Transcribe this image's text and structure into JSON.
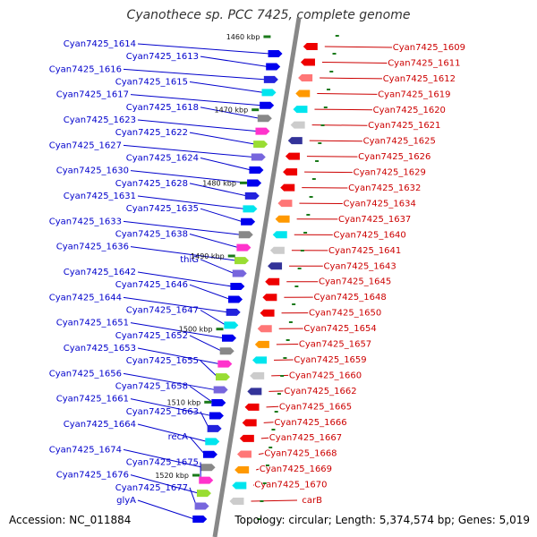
{
  "title": "Cyanothece sp. PCC 7425, complete genome",
  "footer": {
    "accession": "Accession: NC_011884",
    "stats": "Topology: circular; Length: 5,374,574 bp; Genes: 5,019"
  },
  "colors": {
    "forward_label": "#0000cc",
    "reverse_label": "#cc0000",
    "axis": "#888888",
    "tick": "#1a7a1a"
  },
  "kbp_markers": [
    "1460 kbp",
    "1470 kbp",
    "1480 kbp",
    "1490 kbp",
    "1500 kbp",
    "1510 kbp",
    "1520 kbp"
  ],
  "forward_genes": [
    "Cyan7425_1614",
    "Cyan7425_1613",
    "Cyan7425_1616",
    "Cyan7425_1615",
    "Cyan7425_1617",
    "Cyan7425_1618",
    "Cyan7425_1623",
    "Cyan7425_1622",
    "Cyan7425_1627",
    "Cyan7425_1624",
    "Cyan7425_1630",
    "Cyan7425_1628",
    "Cyan7425_1631",
    "Cyan7425_1635",
    "Cyan7425_1633",
    "Cyan7425_1638",
    "Cyan7425_1636",
    "thiG",
    "Cyan7425_1642",
    "Cyan7425_1646",
    "Cyan7425_1644",
    "Cyan7425_1647",
    "Cyan7425_1651",
    "Cyan7425_1652",
    "Cyan7425_1653",
    "Cyan7425_1655",
    "Cyan7425_1656",
    "Cyan7425_1658",
    "Cyan7425_1661",
    "Cyan7425_1663",
    "Cyan7425_1664",
    "recA",
    "Cyan7425_1674",
    "Cyan7425_1675",
    "Cyan7425_1676",
    "Cyan7425_1677",
    "glyA"
  ],
  "reverse_genes": [
    "Cyan7425_1609",
    "Cyan7425_1611",
    "Cyan7425_1612",
    "Cyan7425_1619",
    "Cyan7425_1620",
    "Cyan7425_1621",
    "Cyan7425_1625",
    "Cyan7425_1626",
    "Cyan7425_1629",
    "Cyan7425_1632",
    "Cyan7425_1634",
    "Cyan7425_1637",
    "Cyan7425_1640",
    "Cyan7425_1641",
    "Cyan7425_1643",
    "Cyan7425_1645",
    "Cyan7425_1648",
    "Cyan7425_1650",
    "Cyan7425_1654",
    "Cyan7425_1657",
    "Cyan7425_1659",
    "Cyan7425_1660",
    "Cyan7425_1662",
    "Cyan7425_1665",
    "Cyan7425_1666",
    "Cyan7425_1667",
    "Cyan7425_1668",
    "Cyan7425_1669",
    "Cyan7425_1670",
    "carB"
  ]
}
